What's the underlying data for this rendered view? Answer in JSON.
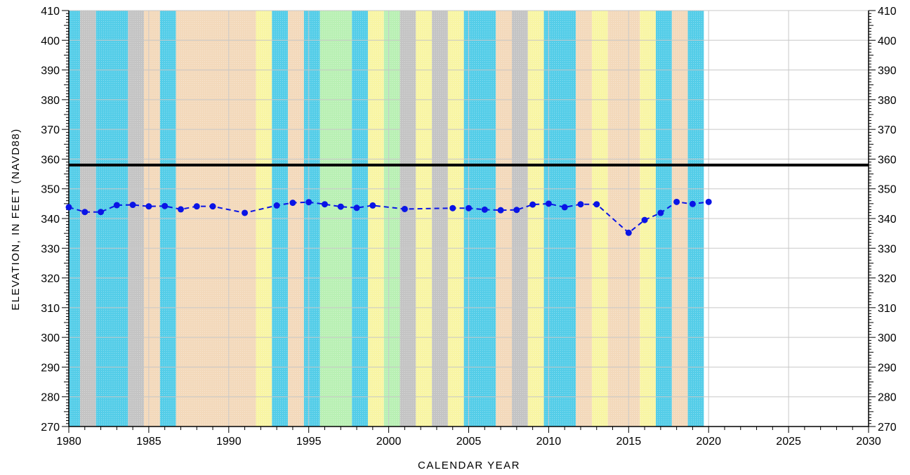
{
  "chart_data": {
    "type": "line",
    "title": "",
    "xlabel": "CALENDAR YEAR",
    "ylabel": "ELEVATION, IN FEET (NAVD88)",
    "xlim": [
      1980,
      2030
    ],
    "ylim": [
      270,
      410
    ],
    "x_ticks": [
      1980,
      1985,
      1990,
      1995,
      2000,
      2005,
      2010,
      2015,
      2020,
      2025,
      2030
    ],
    "y_ticks": [
      270,
      280,
      290,
      300,
      310,
      320,
      330,
      340,
      350,
      360,
      370,
      380,
      390,
      400,
      410
    ],
    "y_ticks_right": true,
    "grid": true,
    "reference_line": {
      "y": 358,
      "color": "#000000"
    },
    "series": [
      {
        "color": "#0a14e6",
        "style": "dashed-with-markers",
        "x": [
          1980,
          1981,
          1982,
          1983,
          1984,
          1985,
          1986,
          1987,
          1988,
          1989,
          1991,
          1993,
          1994,
          1995,
          1996,
          1997,
          1998,
          1999,
          2001,
          2004,
          2005,
          2006,
          2007,
          2008,
          2009,
          2010,
          2011,
          2012,
          2013,
          2015,
          2016,
          2017,
          2018,
          2019,
          2020
        ],
        "y": [
          343.8,
          342.2,
          342.2,
          344.5,
          344.6,
          344.1,
          344.2,
          343.1,
          344.1,
          344.1,
          341.9,
          344.4,
          345.3,
          345.5,
          344.8,
          344.0,
          343.6,
          344.4,
          343.2,
          343.5,
          343.5,
          343.0,
          342.8,
          342.9,
          344.7,
          345.0,
          343.8,
          344.8,
          344.8,
          335.2,
          339.5,
          341.9,
          345.6,
          344.9,
          345.6
        ]
      }
    ],
    "background_bands": [
      {
        "from": 1979.6,
        "to": 1980.7,
        "color": "#54cde8"
      },
      {
        "from": 1980.7,
        "to": 1981.7,
        "color": "#c4c4c4"
      },
      {
        "from": 1981.7,
        "to": 1983.7,
        "color": "#54cde8"
      },
      {
        "from": 1983.7,
        "to": 1984.7,
        "color": "#c4c4c4"
      },
      {
        "from": 1984.7,
        "to": 1985.7,
        "color": "#f3d9bb"
      },
      {
        "from": 1985.7,
        "to": 1986.7,
        "color": "#54cde8"
      },
      {
        "from": 1986.7,
        "to": 1991.7,
        "color": "#f3d9bb"
      },
      {
        "from": 1991.7,
        "to": 1992.7,
        "color": "#f8f5a4"
      },
      {
        "from": 1992.7,
        "to": 1993.7,
        "color": "#54cde8"
      },
      {
        "from": 1993.7,
        "to": 1994.7,
        "color": "#f3d9bb"
      },
      {
        "from": 1994.7,
        "to": 1995.7,
        "color": "#54cde8"
      },
      {
        "from": 1995.7,
        "to": 1997.7,
        "color": "#b9f0b4"
      },
      {
        "from": 1997.7,
        "to": 1998.7,
        "color": "#54cde8"
      },
      {
        "from": 1998.7,
        "to": 1999.7,
        "color": "#f8f5a4"
      },
      {
        "from": 1999.7,
        "to": 2000.7,
        "color": "#b9f0b4"
      },
      {
        "from": 2000.7,
        "to": 2001.7,
        "color": "#c4c4c4"
      },
      {
        "from": 2001.7,
        "to": 2002.7,
        "color": "#f8f5a4"
      },
      {
        "from": 2002.7,
        "to": 2003.7,
        "color": "#c4c4c4"
      },
      {
        "from": 2003.7,
        "to": 2004.7,
        "color": "#f8f5a4"
      },
      {
        "from": 2004.7,
        "to": 2006.7,
        "color": "#54cde8"
      },
      {
        "from": 2006.7,
        "to": 2007.7,
        "color": "#f3d9bb"
      },
      {
        "from": 2007.7,
        "to": 2008.7,
        "color": "#c4c4c4"
      },
      {
        "from": 2008.7,
        "to": 2009.7,
        "color": "#f8f5a4"
      },
      {
        "from": 2009.7,
        "to": 2011.7,
        "color": "#54cde8"
      },
      {
        "from": 2011.7,
        "to": 2012.7,
        "color": "#f3d9bb"
      },
      {
        "from": 2012.7,
        "to": 2013.7,
        "color": "#f8f5a4"
      },
      {
        "from": 2013.7,
        "to": 2015.7,
        "color": "#f3d9bb"
      },
      {
        "from": 2015.7,
        "to": 2016.7,
        "color": "#f8f5a4"
      },
      {
        "from": 2016.7,
        "to": 2017.7,
        "color": "#54cde8"
      },
      {
        "from": 2017.7,
        "to": 2018.7,
        "color": "#f3d9bb"
      },
      {
        "from": 2018.7,
        "to": 2019.7,
        "color": "#54cde8"
      }
    ]
  }
}
